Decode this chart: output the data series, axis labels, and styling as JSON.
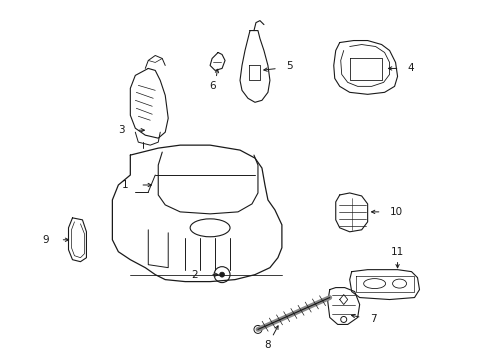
{
  "background_color": "#ffffff",
  "line_color": "#1a1a1a",
  "figsize": [
    4.89,
    3.6
  ],
  "dpi": 100,
  "label_fontsize": 7.5
}
